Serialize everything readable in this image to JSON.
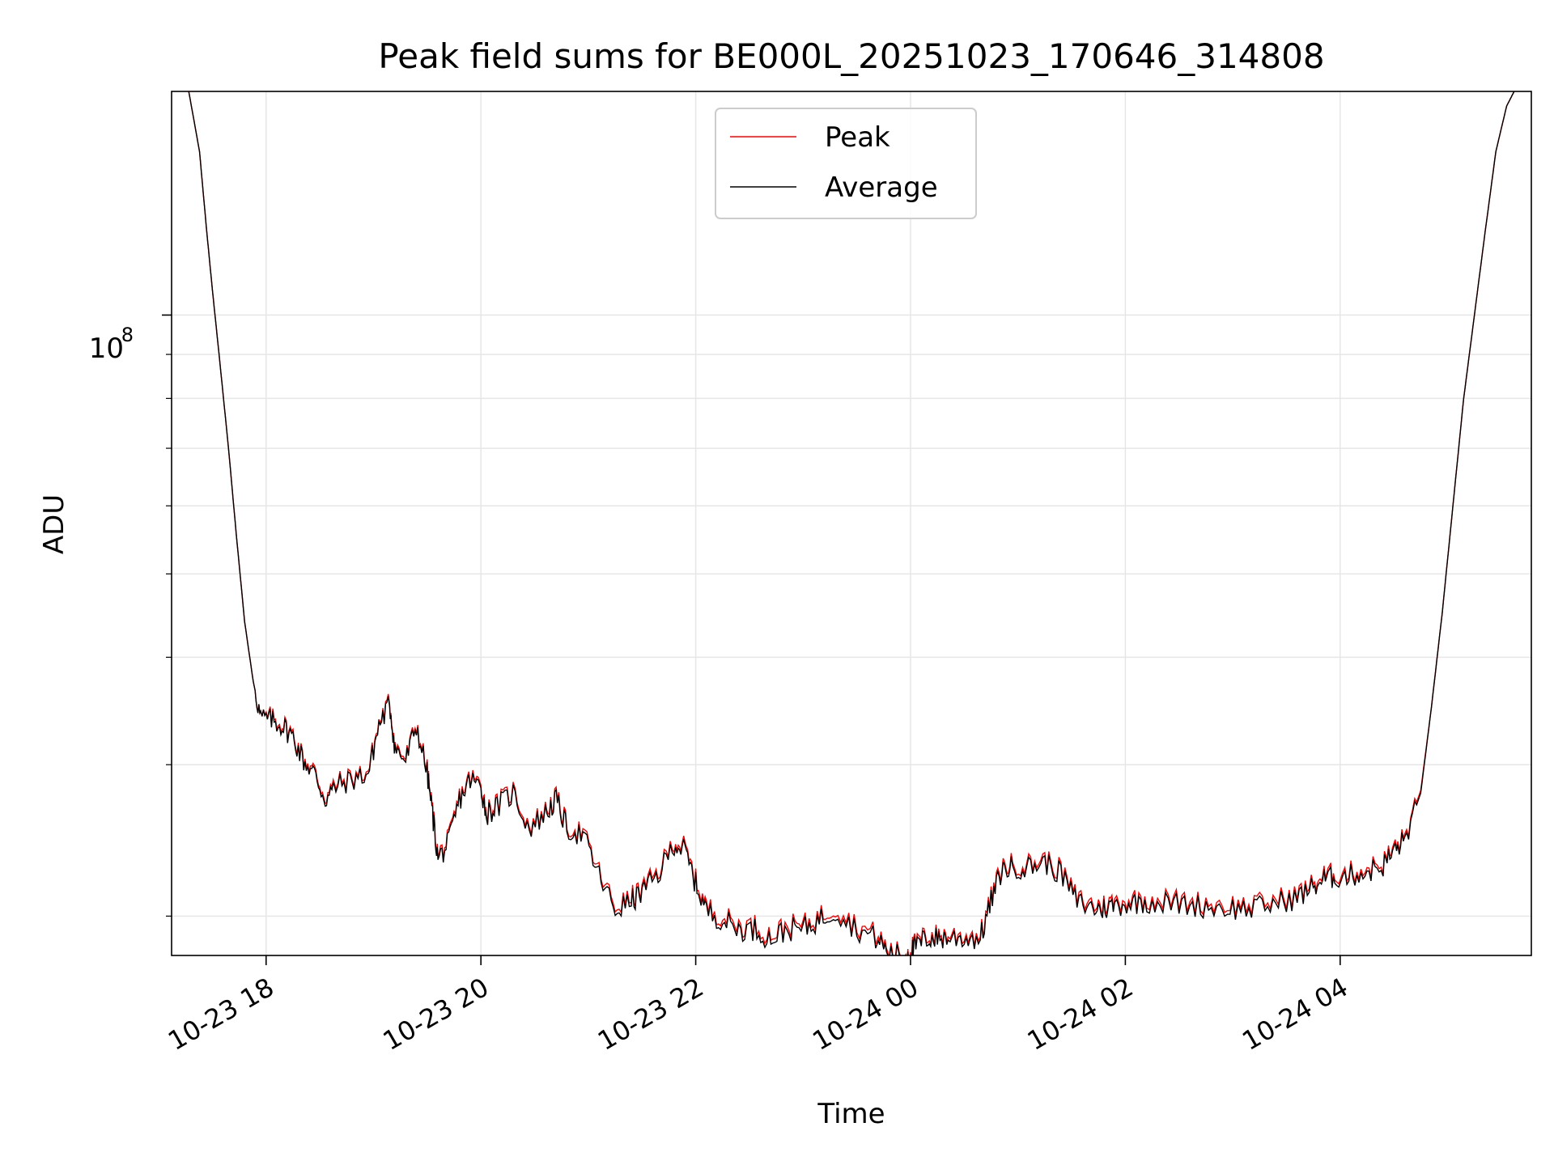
{
  "chart_data": {
    "type": "line",
    "title": "Peak field sums for BE000L_20251023_170646_314808",
    "xlabel": "Time",
    "ylabel": "ADU",
    "yscale": "log",
    "ylim": [
      18000000,
      182000000
    ],
    "xlim": [
      -0.88,
      11.78
    ],
    "grid": true,
    "legend_position": "upper center",
    "x_ticks": [
      {
        "value": 0,
        "label": "10-23 18"
      },
      {
        "value": 2,
        "label": "10-23 20"
      },
      {
        "value": 4,
        "label": "10-23 22"
      },
      {
        "value": 6,
        "label": "10-24 00"
      },
      {
        "value": 8,
        "label": "10-24 02"
      },
      {
        "value": 10,
        "label": "10-24 04"
      }
    ],
    "y_major_tick": {
      "value": 100000000,
      "base": "10",
      "exp": "8"
    },
    "y_minor_ticks": [
      20000000,
      30000000,
      40000000,
      50000000,
      60000000,
      70000000,
      80000000,
      90000000,
      200000000
    ],
    "x_hours": [
      -0.72,
      -0.62,
      -0.55,
      -0.5,
      -0.43,
      -0.35,
      -0.28,
      -0.2,
      -0.12,
      -0.05,
      0.05,
      0.15,
      0.25,
      0.35,
      0.45,
      0.55,
      0.65,
      0.8,
      0.95,
      1.05,
      1.15,
      1.2,
      1.3,
      1.4,
      1.5,
      1.55,
      1.6,
      1.7,
      1.8,
      1.9,
      2.0,
      2.05,
      2.15,
      2.3,
      2.45,
      2.6,
      2.7,
      2.8,
      2.95,
      3.1,
      3.25,
      3.4,
      3.5,
      3.65,
      3.8,
      3.9,
      4.0,
      4.1,
      4.25,
      4.4,
      4.55,
      4.7,
      4.85,
      5.0,
      5.15,
      5.3,
      5.5,
      5.7,
      5.8,
      5.95,
      6.0,
      6.05,
      6.15,
      6.25,
      6.35,
      6.5,
      6.65,
      6.75,
      6.85,
      6.95,
      7.1,
      7.25,
      7.4,
      7.55,
      7.7,
      7.8,
      7.9,
      8.05,
      8.2,
      8.4,
      8.6,
      8.8,
      9.0,
      9.2,
      9.4,
      9.6,
      9.75,
      9.85,
      9.95,
      10.1,
      10.25,
      10.4,
      10.5,
      10.6,
      10.75,
      10.85,
      10.95,
      11.05,
      11.15,
      11.25,
      11.35,
      11.45,
      11.55,
      11.62
    ],
    "series": [
      {
        "name": "Peak",
        "color": "#ff0000",
        "values": [
          182000000,
          155000000,
          124000000,
          107000000,
          88000000,
          70000000,
          56000000,
          44000000,
          37500000,
          34000000,
          34000000,
          33500000,
          32500000,
          30500000,
          29500000,
          27500000,
          28500000,
          29000000,
          29500000,
          33500000,
          35500000,
          31500000,
          30500000,
          33500000,
          29500000,
          26500000,
          23500000,
          24500000,
          27500000,
          29000000,
          28500000,
          26500000,
          27000000,
          28000000,
          25500000,
          26500000,
          27500000,
          25500000,
          25000000,
          22500000,
          20500000,
          21000000,
          21500000,
          22500000,
          24500000,
          24000000,
          22000000,
          20500000,
          20000000,
          19500000,
          19500000,
          19000000,
          19500000,
          19500000,
          20000000,
          20500000,
          19500000,
          19000000,
          18200000,
          18100000,
          18300000,
          18600000,
          19000000,
          19000000,
          19000000,
          19000000,
          19000000,
          21000000,
          22800000,
          23000000,
          23000000,
          23300000,
          22600000,
          21000000,
          20600000,
          20600000,
          20800000,
          20900000,
          21000000,
          20900000,
          20800000,
          20700000,
          20600000,
          20600000,
          20900000,
          21200000,
          21800000,
          22300000,
          22400000,
          22500000,
          22700000,
          23100000,
          24000000,
          24700000,
          28000000,
          35000000,
          45000000,
          60000000,
          80000000,
          100000000,
          125000000,
          155000000,
          175000000,
          182000000
        ]
      },
      {
        "name": "Average",
        "color": "#000000",
        "values": [
          182000000,
          155000000,
          124000000,
          107000000,
          88000000,
          70000000,
          56000000,
          44000000,
          37500000,
          34000000,
          33800000,
          33300000,
          32300000,
          30300000,
          29300000,
          27300000,
          28300000,
          28800000,
          29300000,
          33300000,
          35300000,
          31300000,
          30300000,
          33300000,
          29300000,
          26300000,
          23300000,
          24300000,
          27300000,
          28800000,
          28300000,
          26300000,
          26800000,
          27800000,
          25300000,
          26300000,
          27300000,
          25300000,
          24800000,
          22300000,
          20300000,
          20800000,
          21300000,
          22300000,
          24300000,
          23800000,
          21800000,
          20300000,
          19800000,
          19300000,
          19300000,
          18800000,
          19300000,
          19300000,
          19800000,
          20300000,
          19300000,
          18800000,
          18050000,
          18000000,
          18150000,
          18450000,
          18850000,
          18850000,
          18850000,
          18850000,
          18850000,
          20800000,
          22600000,
          22800000,
          22800000,
          23100000,
          22400000,
          20800000,
          20400000,
          20400000,
          20600000,
          20700000,
          20800000,
          20700000,
          20600000,
          20500000,
          20400000,
          20400000,
          20700000,
          21000000,
          21600000,
          22100000,
          22200000,
          22300000,
          22500000,
          22900000,
          23800000,
          24500000,
          27800000,
          35000000,
          45000000,
          60000000,
          80000000,
          100000000,
          125000000,
          155000000,
          175000000,
          182000000
        ]
      }
    ]
  }
}
